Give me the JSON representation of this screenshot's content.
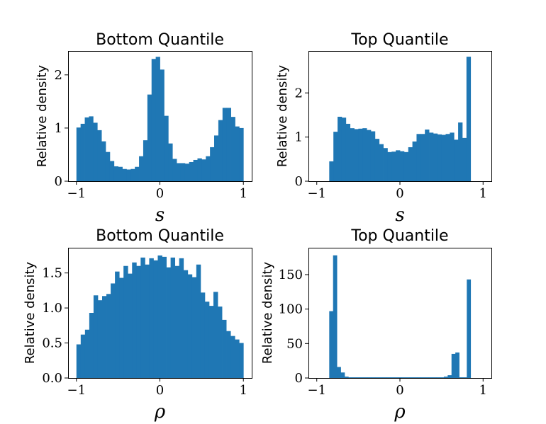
{
  "chart_data": [
    {
      "type": "bar",
      "title": "Bottom Quantile",
      "xlabel": "s",
      "ylabel": "Relative density",
      "xlim": [
        -1.1,
        1.1
      ],
      "ylim": [
        0,
        2.45
      ],
      "xticks": [
        -1,
        0,
        1
      ],
      "xtick_labels": [
        "−1",
        "0",
        "1"
      ],
      "yticks": [
        0,
        1,
        2
      ],
      "ytick_labels": [
        "0",
        "1",
        "2"
      ],
      "color": "#1f77b4",
      "bin_range": [
        -1,
        1
      ],
      "values": [
        1.01,
        1.08,
        1.2,
        1.22,
        1.1,
        0.96,
        0.75,
        0.55,
        0.38,
        0.28,
        0.27,
        0.23,
        0.22,
        0.23,
        0.27,
        0.47,
        0.77,
        1.63,
        2.3,
        2.34,
        2.1,
        1.23,
        0.71,
        0.42,
        0.34,
        0.34,
        0.33,
        0.36,
        0.4,
        0.43,
        0.41,
        0.47,
        0.64,
        0.86,
        1.15,
        1.38,
        1.38,
        1.21,
        1.03,
        1.0
      ]
    },
    {
      "type": "bar",
      "title": "Top Quantile",
      "xlabel": "s",
      "ylabel": "Relative density",
      "xlim": [
        -1.1,
        1.1
      ],
      "ylim": [
        0,
        2.95
      ],
      "xticks": [
        -1,
        0,
        1
      ],
      "xtick_labels": [
        "−1",
        "0",
        "1"
      ],
      "yticks": [
        0,
        1,
        2
      ],
      "ytick_labels": [
        "0",
        "1",
        "2"
      ],
      "color": "#1f77b4",
      "bin_range": [
        -0.85,
        0.85
      ],
      "values": [
        0.45,
        1.12,
        1.46,
        1.44,
        1.3,
        1.2,
        1.18,
        1.19,
        1.2,
        1.16,
        1.13,
        0.96,
        0.84,
        0.75,
        0.66,
        0.67,
        0.7,
        0.68,
        0.66,
        0.77,
        0.9,
        1.07,
        1.07,
        1.17,
        1.1,
        1.08,
        1.06,
        1.05,
        1.07,
        1.1,
        0.94,
        1.33,
        0.98,
        2.82
      ]
    },
    {
      "type": "bar",
      "title": "Bottom Quantile",
      "xlabel": "ρ",
      "ylabel": "Relative density",
      "xlim": [
        -1.1,
        1.1
      ],
      "ylim": [
        0,
        1.86
      ],
      "xticks": [
        -1,
        0,
        1
      ],
      "xtick_labels": [
        "−1",
        "0",
        "1"
      ],
      "yticks": [
        0,
        0.5,
        1.0,
        1.5
      ],
      "ytick_labels": [
        "0.0",
        "0.5",
        "1.0",
        "1.5"
      ],
      "color": "#1f77b4",
      "bin_range": [
        -1,
        1
      ],
      "values": [
        0.48,
        0.62,
        0.69,
        0.93,
        1.18,
        1.11,
        1.17,
        1.2,
        1.35,
        1.52,
        1.43,
        1.6,
        1.49,
        1.65,
        1.6,
        1.72,
        1.62,
        1.71,
        1.68,
        1.75,
        1.73,
        1.58,
        1.72,
        1.6,
        1.71,
        1.54,
        1.48,
        1.44,
        1.62,
        1.22,
        1.09,
        1.03,
        1.23,
        1.02,
        0.83,
        0.67,
        0.6,
        0.55,
        0.5
      ]
    },
    {
      "type": "bar",
      "title": "Top Quantile",
      "xlabel": "ρ",
      "ylabel": "Relative density",
      "xlim": [
        -1.1,
        1.1
      ],
      "ylim": [
        0,
        189
      ],
      "xticks": [
        -1,
        0,
        1
      ],
      "xtick_labels": [
        "−1",
        "0",
        "1"
      ],
      "yticks": [
        0,
        50,
        100,
        150
      ],
      "ytick_labels": [
        "0",
        "50",
        "100",
        "150"
      ],
      "color": "#1f77b4",
      "bin_range": [
        -0.85,
        0.85
      ],
      "values": [
        97,
        178,
        16,
        8,
        2,
        1,
        1,
        1,
        1,
        1,
        1,
        1,
        1,
        1,
        1,
        1,
        1,
        1,
        1,
        1,
        1,
        1,
        1,
        1,
        1,
        1,
        1,
        1,
        1,
        1,
        2,
        4,
        35,
        37,
        1,
        1,
        143
      ]
    }
  ]
}
